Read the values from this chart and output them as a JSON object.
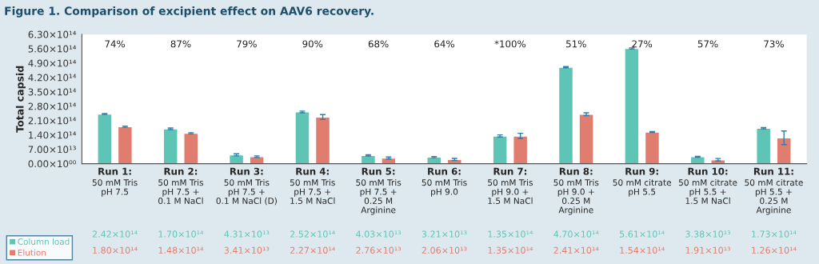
{
  "chart_data": {
    "type": "bar",
    "title": "Figure 1. Comparison of excipient effect on AAV6 recovery.",
    "ylabel": "Total capsid",
    "categories": [
      "Run 1:\n50 mM Tris\npH 7.5",
      "Run 2:\n50 mM Tris\npH 7.5 +\n0.1 M NaCl",
      "Run 3:\n50 mM Tris\npH 7.5 +\n0.1 M NaCl (D)",
      "Run 4:\n50 mM Tris\npH 7.5 +\n1.5 M NaCl",
      "Run 5:\n50 mM Tris\npH 7.5 +\n0.25 M\nArginine",
      "Run 6:\n50 mM Tris\npH 9.0",
      "Run 7:\n50 mM Tris\npH 9.0 +\n1.5 M NaCl",
      "Run 8:\n50 mM Tris\npH 9.0 +\n0.25 M\nArginine",
      "Run 9:\n50 mM citrate\npH 5.5",
      "Run 10:\n50 mM citrate\npH 5.5 +\n1.5 M NaCl",
      "Run 11:\n50 mM citrate\npH 5.5 +\n0.25 M\nArginine"
    ],
    "series": [
      {
        "name": "Column load",
        "color": "#5ec4b6",
        "values": [
          242000000000000.0,
          170000000000000.0,
          43100000000000.0,
          252000000000000.0,
          40300000000000.0,
          32100000000000.0,
          135000000000000.0,
          470000000000000.0,
          561000000000000.0,
          33800000000000.0,
          173000000000000.0
        ],
        "errors": [
          2000000000000.0,
          4000000000000.0,
          5000000000000.0,
          4000000000000.0,
          3000000000000.0,
          3000000000000.0,
          5000000000000.0,
          3000000000000.0,
          3000000000000.0,
          2000000000000.0,
          3000000000000.0
        ],
        "value_labels": [
          "2.42×10¹⁴",
          "1.70×10¹⁴",
          "4.31×10¹³",
          "2.52×10¹⁴",
          "4.03×10¹³",
          "3.21×10¹³",
          "1.35×10¹⁴",
          "4.70×10¹⁴",
          "5.61×10¹⁴",
          "3.38×10¹³",
          "1.73×10¹⁴"
        ]
      },
      {
        "name": "Elution",
        "color": "#e07d6e",
        "values": [
          180000000000000.0,
          148000000000000.0,
          34100000000000.0,
          227000000000000.0,
          27600000000000.0,
          20600000000000.0,
          135000000000000.0,
          241000000000000.0,
          154000000000000.0,
          19100000000000.0,
          126000000000000.0
        ],
        "errors": [
          3000000000000.0,
          3000000000000.0,
          4000000000000.0,
          12000000000000.0,
          5000000000000.0,
          5000000000000.0,
          13000000000000.0,
          7000000000000.0,
          2000000000000.0,
          6000000000000.0,
          33000000000000.0
        ],
        "value_labels": [
          "1.80×10¹⁴",
          "1.48×10¹⁴",
          "3.41×10¹³",
          "2.27×10¹⁴",
          "2.76×10¹³",
          "2.06×10¹³",
          "1.35×10¹⁴",
          "2.41×10¹⁴",
          "1.54×10¹⁴",
          "1.91×10¹³",
          "1.26×10¹⁴"
        ]
      }
    ],
    "annotations": [
      "74%",
      "87%",
      "79%",
      "90%",
      "68%",
      "64%",
      "*100%",
      "51%",
      "27%",
      "57%",
      "73%"
    ],
    "ylim": [
      0,
      630000000000000.0
    ],
    "yticks": [
      {
        "value": 0,
        "label": "0.00×10⁰⁰"
      },
      {
        "value": 70000000000000.0,
        "label": "7.00×10¹³"
      },
      {
        "value": 140000000000000.0,
        "label": "1.40×10¹⁴"
      },
      {
        "value": 210000000000000.0,
        "label": "2.10×10¹⁴"
      },
      {
        "value": 280000000000000.0,
        "label": "2.80×10¹⁴"
      },
      {
        "value": 350000000000000.0,
        "label": "3.50×10¹⁴"
      },
      {
        "value": 420000000000000.0,
        "label": "4.20×10¹⁴"
      },
      {
        "value": 490000000000000.0,
        "label": "4.90×10¹⁴"
      },
      {
        "value": 560000000000000.0,
        "label": "5.60×10¹⁴"
      },
      {
        "value": 630000000000000.0,
        "label": "6.30×10¹⁴"
      }
    ],
    "grid": false,
    "legend": "bottom left"
  }
}
